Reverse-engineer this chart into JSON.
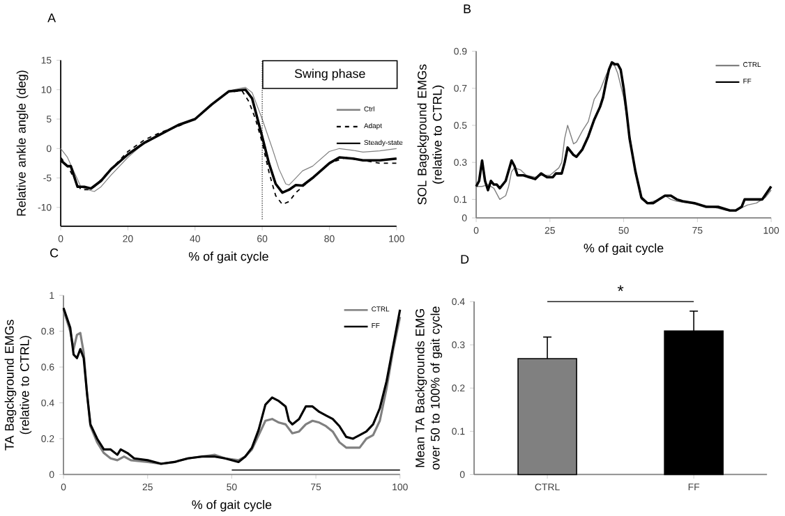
{
  "chart_data": [
    {
      "type": "line",
      "title": "A",
      "xlabel": "% of gait cycle",
      "ylabel": "Relative ankle angle (deg)",
      "xlim": [
        0,
        100
      ],
      "ylim": [
        -13.2,
        15
      ],
      "xticks": [
        0,
        20,
        40,
        60,
        80,
        100
      ],
      "yticks": [
        -10,
        -5,
        0,
        5,
        10,
        15
      ],
      "legend": "right",
      "ref_lines": [
        {
          "axis": "x",
          "value": 60,
          "line_style": "dotted"
        }
      ],
      "annotations": [
        "Swing phase"
      ],
      "series": [
        {
          "name": "Ctrl",
          "color": "#808080",
          "x": [
            0,
            2,
            4,
            6,
            8,
            10,
            12,
            15,
            20,
            25,
            30,
            35,
            40,
            45,
            50,
            55,
            57,
            60,
            63,
            65,
            67,
            68,
            70,
            72,
            75,
            80,
            83,
            87,
            90,
            95,
            100
          ],
          "values": [
            0,
            -1.5,
            -4,
            -6.5,
            -7,
            -7.3,
            -6.5,
            -4.5,
            -1.5,
            1,
            2.5,
            3.8,
            5,
            7.5,
            9.8,
            10.4,
            9.5,
            5,
            0,
            -3.5,
            -6,
            -6.2,
            -5,
            -3.8,
            -3,
            -0.5,
            0,
            -0.3,
            -0.6,
            -0.4,
            0
          ]
        },
        {
          "name": "Adapt",
          "color": "#000000",
          "line_style": "dashed",
          "x": [
            0,
            2,
            4,
            6,
            8,
            10,
            15,
            20,
            25,
            30,
            35,
            40,
            45,
            50,
            54,
            56,
            58,
            60,
            62,
            64,
            66,
            68,
            70,
            75,
            80,
            85,
            90,
            95,
            100
          ],
          "values": [
            -1.5,
            -3,
            -5,
            -7,
            -7,
            -6.5,
            -3.5,
            -0.5,
            1.5,
            2.8,
            3.8,
            5,
            7.5,
            9.6,
            9.8,
            8,
            5,
            1,
            -4,
            -8,
            -9.5,
            -9,
            -7.5,
            -5,
            -2.5,
            -1.5,
            -2,
            -2.5,
            -2.5
          ]
        },
        {
          "name": "Steady-state",
          "color": "#000000",
          "x": [
            0,
            2,
            3,
            5,
            7,
            9,
            12,
            15,
            20,
            25,
            30,
            35,
            40,
            45,
            50,
            55,
            57,
            60,
            62,
            64,
            66,
            68,
            70,
            72,
            75,
            80,
            83,
            87,
            90,
            95,
            100
          ],
          "values": [
            -2,
            -3,
            -3,
            -6.5,
            -6.5,
            -6.8,
            -5.5,
            -3.5,
            -1,
            1,
            2.5,
            4,
            5,
            7.5,
            9.7,
            10,
            8.5,
            2,
            -2.5,
            -6,
            -7.5,
            -7,
            -6.2,
            -6.3,
            -5,
            -2.5,
            -1.5,
            -1.7,
            -2,
            -2,
            -1.7
          ]
        }
      ]
    },
    {
      "type": "line",
      "title": "B",
      "xlabel": "% of gait cycle",
      "ylabel": "SOL Bagckground EMGs (relative to CTRL)",
      "xlim": [
        0,
        100
      ],
      "ylim": [
        0,
        0.9
      ],
      "xticks": [
        0,
        25,
        50,
        75,
        100
      ],
      "yticks": [
        0,
        0.1,
        0.3,
        0.5,
        0.7,
        0.9
      ],
      "legend": "top right",
      "series": [
        {
          "name": "CTRL",
          "color": "#808080",
          "x": [
            0,
            2,
            4,
            6,
            7,
            8,
            10,
            11,
            12,
            13,
            15,
            17,
            20,
            22,
            25,
            28,
            29,
            30,
            31,
            32,
            33,
            34,
            36,
            38,
            39,
            40,
            42,
            44,
            46,
            47,
            48,
            50,
            52,
            54,
            56,
            58,
            62,
            64,
            66,
            68,
            72,
            76,
            80,
            85,
            88,
            92,
            95,
            98,
            100
          ],
          "values": [
            0.17,
            0.17,
            0.18,
            0.16,
            0.13,
            0.1,
            0.12,
            0.17,
            0.25,
            0.27,
            0.26,
            0.23,
            0.22,
            0.23,
            0.23,
            0.27,
            0.3,
            0.43,
            0.5,
            0.45,
            0.4,
            0.41,
            0.47,
            0.52,
            0.58,
            0.64,
            0.69,
            0.77,
            0.83,
            0.82,
            0.78,
            0.65,
            0.45,
            0.25,
            0.1,
            0.08,
            0.1,
            0.12,
            0.1,
            0.09,
            0.08,
            0.07,
            0.06,
            0.04,
            0.04,
            0.07,
            0.08,
            0.11,
            0.15
          ]
        },
        {
          "name": "FF",
          "color": "#000000",
          "x": [
            0,
            1,
            2,
            3,
            4,
            5,
            6,
            7,
            8,
            10,
            12,
            13,
            14,
            16,
            18,
            20,
            22,
            24,
            26,
            27,
            29,
            30,
            31,
            33,
            34,
            36,
            38,
            40,
            42,
            43,
            44,
            45,
            46,
            47,
            48,
            49,
            50,
            51,
            52,
            54,
            56,
            58,
            60,
            62,
            64,
            66,
            68,
            70,
            74,
            78,
            82,
            86,
            88,
            90,
            91,
            93,
            97,
            100
          ],
          "values": [
            0.17,
            0.2,
            0.31,
            0.2,
            0.15,
            0.2,
            0.18,
            0.18,
            0.16,
            0.2,
            0.31,
            0.28,
            0.23,
            0.23,
            0.22,
            0.21,
            0.24,
            0.22,
            0.22,
            0.24,
            0.24,
            0.3,
            0.38,
            0.34,
            0.33,
            0.37,
            0.44,
            0.53,
            0.6,
            0.65,
            0.73,
            0.8,
            0.84,
            0.83,
            0.83,
            0.8,
            0.7,
            0.57,
            0.43,
            0.25,
            0.11,
            0.08,
            0.08,
            0.1,
            0.12,
            0.12,
            0.1,
            0.09,
            0.08,
            0.06,
            0.06,
            0.04,
            0.04,
            0.06,
            0.1,
            0.1,
            0.1,
            0.17
          ]
        }
      ]
    },
    {
      "type": "line",
      "title": "C",
      "xlabel": "% of gait cycle",
      "ylabel": "TA Bagckground EMGs (relative to CTRL)",
      "xlim": [
        0,
        100
      ],
      "ylim": [
        0,
        1
      ],
      "xticks": [
        0,
        25,
        50,
        75,
        100
      ],
      "yticks": [
        0,
        0.2,
        0.4,
        0.6,
        0.8,
        1
      ],
      "legend": "top right",
      "series": [
        {
          "name": "CTRL",
          "color": "#808080",
          "x": [
            0,
            2,
            3,
            4,
            5,
            6,
            7,
            8,
            10,
            12,
            14,
            16,
            18,
            20,
            25,
            29,
            33,
            37,
            41,
            45,
            48,
            52,
            54,
            56,
            58,
            60,
            62,
            64,
            66,
            68,
            70,
            72,
            74,
            76,
            78,
            80,
            82,
            84,
            86,
            88,
            90,
            92,
            94,
            96,
            98,
            100
          ],
          "values": [
            0.92,
            0.8,
            0.7,
            0.78,
            0.79,
            0.68,
            0.45,
            0.27,
            0.18,
            0.12,
            0.09,
            0.08,
            0.1,
            0.08,
            0.07,
            0.06,
            0.07,
            0.09,
            0.1,
            0.11,
            0.09,
            0.08,
            0.1,
            0.14,
            0.22,
            0.3,
            0.31,
            0.29,
            0.28,
            0.23,
            0.24,
            0.28,
            0.3,
            0.29,
            0.27,
            0.24,
            0.18,
            0.15,
            0.15,
            0.15,
            0.2,
            0.22,
            0.3,
            0.48,
            0.7,
            0.88
          ]
        },
        {
          "name": "FF",
          "color": "#000000",
          "x": [
            0,
            2,
            3,
            4,
            5,
            6,
            7,
            8,
            10,
            12,
            14,
            16,
            17,
            19,
            21,
            25,
            29,
            33,
            37,
            41,
            45,
            48,
            52,
            54,
            56,
            58,
            60,
            62,
            64,
            66,
            67,
            68,
            70,
            72,
            74,
            76,
            78,
            80,
            82,
            84,
            86,
            88,
            90,
            92,
            94,
            96,
            98,
            100
          ],
          "values": [
            0.93,
            0.82,
            0.67,
            0.65,
            0.7,
            0.65,
            0.45,
            0.28,
            0.2,
            0.14,
            0.14,
            0.11,
            0.14,
            0.12,
            0.09,
            0.08,
            0.06,
            0.07,
            0.09,
            0.1,
            0.1,
            0.09,
            0.07,
            0.1,
            0.15,
            0.25,
            0.39,
            0.43,
            0.41,
            0.38,
            0.3,
            0.28,
            0.31,
            0.38,
            0.38,
            0.35,
            0.33,
            0.31,
            0.27,
            0.21,
            0.2,
            0.22,
            0.24,
            0.28,
            0.37,
            0.52,
            0.72,
            0.92
          ]
        },
        {
          "color": "#404040",
          "x": [
            50,
            100
          ],
          "values": [
            0.025,
            0.025
          ]
        }
      ]
    },
    {
      "type": "bar",
      "title": "D",
      "ylabel": "Mean TA Backgrounds EMG over 50 to 100% of gait cycle",
      "categories": [
        "CTRL",
        "FF"
      ],
      "values": [
        0.268,
        0.332
      ],
      "colors": [
        "#808080",
        "#000000"
      ],
      "errors": [
        [
          0.268,
          0.318
        ],
        [
          0.332,
          0.378
        ]
      ],
      "ylim": [
        0,
        0.4
      ],
      "yticks": [
        0,
        0.1,
        0.2,
        0.3,
        0.4
      ],
      "annotations": [
        "*"
      ]
    }
  ]
}
